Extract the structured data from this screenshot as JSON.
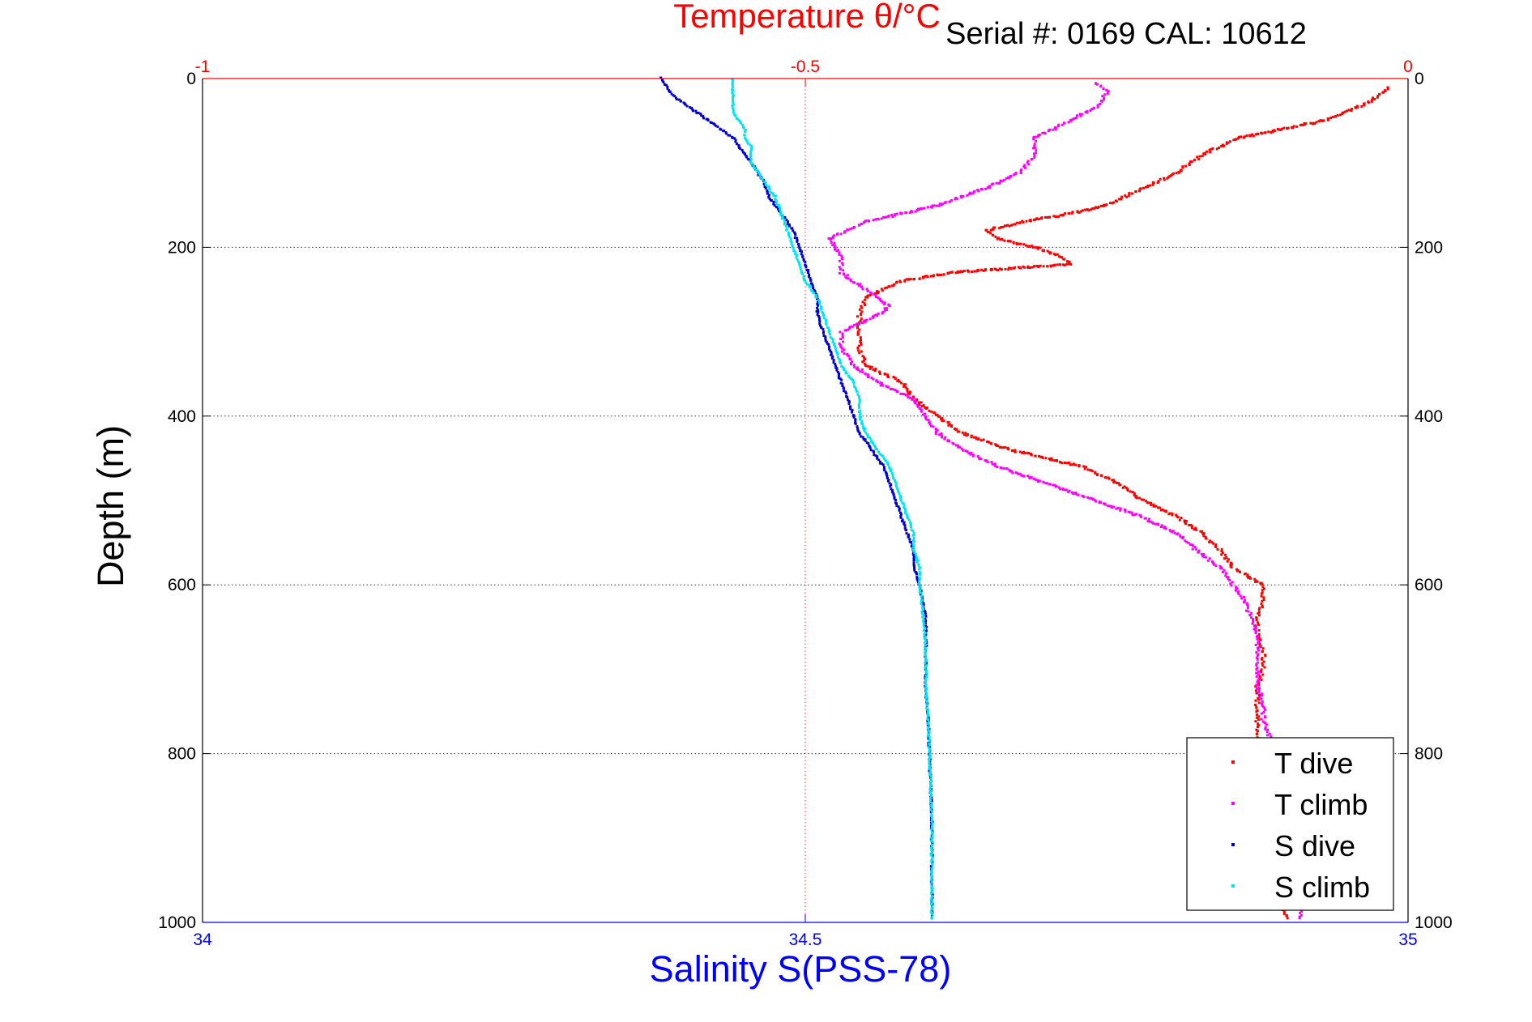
{
  "chart_data": {
    "type": "scatter",
    "title": "Temperature θ/°C",
    "subtitle": "Serial #: 0169 CAL: 10612",
    "ylabel": "Depth (m)",
    "xlabel": "Salinity S(PSS-78)",
    "ylim": [
      0,
      1000
    ],
    "y_reversed": true,
    "x_bottom_lim": [
      34,
      35
    ],
    "x_top_lim": [
      -1,
      0
    ],
    "yticks": [
      "0",
      "200",
      "400",
      "600",
      "800",
      "1000"
    ],
    "x_bottom_ticks": [
      "34",
      "34.5",
      "35"
    ],
    "x_top_ticks": [
      "-1",
      "-0.5",
      "0"
    ],
    "grid": true,
    "legend_position": "bottom-right",
    "colors": {
      "temperature_axis": "#ff0000",
      "salinity_axis": "#0000ff",
      "t_dive": "#ff0000",
      "t_climb": "#ff00ff",
      "s_dive": "#0000cc",
      "s_climb": "#00e5ee"
    },
    "series": [
      {
        "name": "T dive",
        "axis": "temperature",
        "color": "#ff0000",
        "depth": [
          10,
          30,
          50,
          70,
          90,
          110,
          130,
          150,
          160,
          170,
          180,
          190,
          200,
          210,
          220,
          230,
          240,
          260,
          280,
          300,
          320,
          340,
          360,
          380,
          400,
          420,
          440,
          460,
          480,
          500,
          520,
          540,
          560,
          580,
          600,
          620,
          640,
          660,
          680,
          700,
          720,
          740,
          760,
          780,
          800,
          820,
          840,
          860,
          870,
          880,
          900,
          920,
          940,
          960,
          980,
          995
        ],
        "values": [
          -0.015,
          -0.035,
          -0.07,
          -0.14,
          -0.17,
          -0.19,
          -0.22,
          -0.25,
          -0.28,
          -0.32,
          -0.35,
          -0.34,
          -0.31,
          -0.29,
          -0.28,
          -0.38,
          -0.42,
          -0.45,
          -0.455,
          -0.455,
          -0.455,
          -0.45,
          -0.42,
          -0.41,
          -0.39,
          -0.37,
          -0.33,
          -0.27,
          -0.24,
          -0.22,
          -0.19,
          -0.17,
          -0.155,
          -0.145,
          -0.12,
          -0.12,
          -0.125,
          -0.125,
          -0.12,
          -0.12,
          -0.125,
          -0.125,
          -0.125,
          -0.125,
          -0.12,
          -0.11,
          -0.1,
          -0.09,
          -0.08,
          -0.09,
          -0.105,
          -0.105,
          -0.105,
          -0.105,
          -0.105,
          -0.1
        ]
      },
      {
        "name": "T climb",
        "axis": "temperature",
        "color": "#ff00ff",
        "depth": [
          5,
          15,
          30,
          50,
          70,
          90,
          110,
          130,
          150,
          170,
          190,
          210,
          230,
          250,
          270,
          280,
          300,
          320,
          340,
          360,
          380,
          400,
          420,
          440,
          460,
          480,
          500,
          520,
          540,
          560,
          580,
          600,
          620,
          640,
          660,
          680,
          700,
          720,
          740,
          760,
          780,
          800,
          820,
          840,
          860,
          880,
          900,
          920,
          940,
          960,
          980,
          995
        ],
        "values": [
          -0.26,
          -0.25,
          -0.255,
          -0.28,
          -0.31,
          -0.31,
          -0.32,
          -0.35,
          -0.39,
          -0.45,
          -0.48,
          -0.47,
          -0.47,
          -0.45,
          -0.43,
          -0.44,
          -0.47,
          -0.47,
          -0.46,
          -0.44,
          -0.41,
          -0.4,
          -0.39,
          -0.37,
          -0.34,
          -0.3,
          -0.26,
          -0.22,
          -0.19,
          -0.175,
          -0.155,
          -0.145,
          -0.135,
          -0.13,
          -0.125,
          -0.125,
          -0.125,
          -0.125,
          -0.12,
          -0.12,
          -0.115,
          -0.11,
          -0.105,
          -0.1,
          -0.095,
          -0.09,
          -0.085,
          -0.08,
          -0.08,
          -0.08,
          -0.085,
          -0.09
        ]
      },
      {
        "name": "S dive",
        "axis": "salinity",
        "color": "#0000cc",
        "depth": [
          0,
          10,
          20,
          30,
          40,
          50,
          60,
          70,
          80,
          90,
          100,
          110,
          120,
          140,
          160,
          180,
          200,
          220,
          240,
          260,
          280,
          300,
          320,
          340,
          360,
          380,
          400,
          420,
          440,
          460,
          480,
          500,
          520,
          540,
          560,
          580,
          600,
          640,
          680,
          720,
          760,
          800,
          840,
          880,
          920,
          960,
          995
        ],
        "values": [
          34.38,
          34.385,
          34.39,
          34.4,
          34.41,
          34.42,
          34.43,
          34.44,
          34.445,
          34.45,
          34.455,
          34.46,
          34.465,
          34.47,
          34.48,
          34.49,
          34.495,
          34.5,
          34.505,
          34.51,
          34.51,
          34.515,
          34.52,
          34.525,
          34.53,
          34.535,
          34.54,
          34.545,
          34.555,
          34.565,
          34.57,
          34.575,
          34.58,
          34.585,
          34.59,
          34.59,
          34.595,
          34.6,
          34.6,
          34.6,
          34.602,
          34.603,
          34.604,
          34.605,
          34.605,
          34.605,
          34.605
        ]
      },
      {
        "name": "S climb",
        "axis": "salinity",
        "color": "#00e5ee",
        "depth": [
          0,
          10,
          20,
          30,
          40,
          50,
          60,
          70,
          80,
          90,
          100,
          110,
          120,
          140,
          160,
          180,
          200,
          220,
          240,
          260,
          280,
          300,
          320,
          340,
          360,
          380,
          400,
          420,
          440,
          460,
          480,
          500,
          520,
          540,
          560,
          580,
          600,
          640,
          680,
          720,
          760,
          800,
          840,
          880,
          920,
          960,
          995
        ],
        "values": [
          34.44,
          34.44,
          34.44,
          34.44,
          34.44,
          34.445,
          34.45,
          34.45,
          34.455,
          34.455,
          34.455,
          34.46,
          34.465,
          34.475,
          34.48,
          34.485,
          34.49,
          34.495,
          34.5,
          34.51,
          34.515,
          34.52,
          34.525,
          34.53,
          34.54,
          34.545,
          34.545,
          34.55,
          34.56,
          34.57,
          34.575,
          34.58,
          34.585,
          34.59,
          34.59,
          34.595,
          34.595,
          34.598,
          34.6,
          34.6,
          34.602,
          34.603,
          34.604,
          34.605,
          34.605,
          34.605,
          34.605
        ]
      }
    ]
  }
}
